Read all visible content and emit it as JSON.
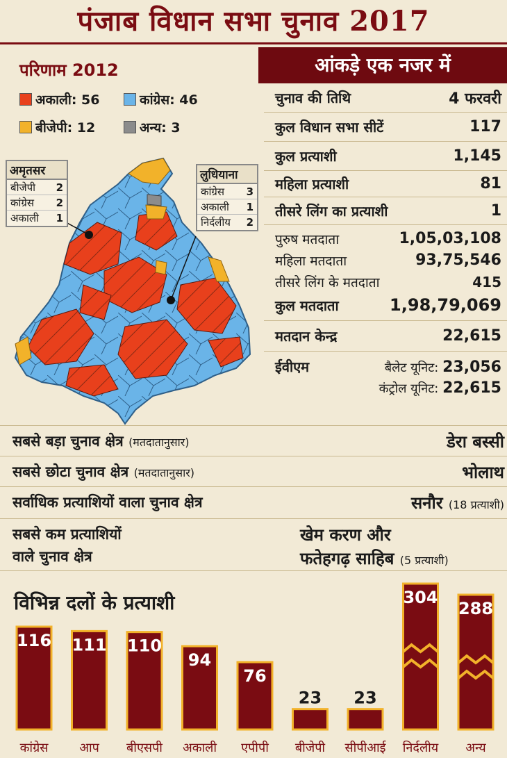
{
  "title": "पंजाब विधान सभा चुनाव 2017",
  "results_2012": {
    "title": "परिणाम 2012",
    "legend": [
      {
        "label": "अकाली: 56",
        "color": "#e8401c"
      },
      {
        "label": "कांग्रेस: 46",
        "color": "#6ab4e8"
      },
      {
        "label": "बीजेपी: 12",
        "color": "#f2b22a"
      },
      {
        "label": "अन्य: 3",
        "color": "#8c8c8c"
      }
    ],
    "amritsar": {
      "title": "अमृतसर",
      "rows": [
        {
          "party": "बीजेपी",
          "count": "2"
        },
        {
          "party": "कांग्रेस",
          "count": "2"
        },
        {
          "party": "अकाली",
          "count": "1"
        }
      ]
    },
    "ludhiana": {
      "title": "लुधियाना",
      "rows": [
        {
          "party": "कांग्रेस",
          "count": "3"
        },
        {
          "party": "अकाली",
          "count": "1"
        },
        {
          "party": "निर्दलीय",
          "count": "2"
        }
      ]
    }
  },
  "stats": {
    "header": "आंकड़े एक नजर में",
    "rows": [
      {
        "label": "चुनाव की तिथि",
        "value": "4 फरवरी"
      },
      {
        "label": "कुल विधान सभा सीटें",
        "value": "117"
      },
      {
        "label": "कुल प्रत्याशी",
        "value": "1,145"
      },
      {
        "label": "महिला प्रत्याशी",
        "value": "81"
      },
      {
        "label": "तीसरे लिंग का प्रत्याशी",
        "value": "1"
      },
      {
        "label": "पुरुष मतदाता",
        "value": "1,05,03,108"
      },
      {
        "label": "महिला मतदाता",
        "value": "93,75,546"
      },
      {
        "label": "तीसरे लिंग के मतदाता",
        "value": "415"
      },
      {
        "label": "कुल मतदाता",
        "value": "1,98,79,069"
      },
      {
        "label": "मतदान केन्द्र",
        "value": "22,615"
      }
    ],
    "evm": {
      "label": "ईवीएम",
      "ballot_label": "बैलेट यूनिट:",
      "ballot_value": "23,056",
      "control_label": "कंट्रोल यूनिट:",
      "control_value": "22,615"
    }
  },
  "facts": [
    {
      "label": "सबसे बड़ा चुनाव क्षेत्र",
      "note": "(मतदातानुसार)",
      "value": "डेरा बस्सी",
      "value_note": ""
    },
    {
      "label": "सबसे छोटा चुनाव क्षेत्र",
      "note": "(मतदातानुसार)",
      "value": "भोलाथ",
      "value_note": ""
    },
    {
      "label": "सर्वाधिक प्रत्याशियों वाला चुनाव क्षेत्र",
      "note": "",
      "value": "सनौर",
      "value_note": "(18 प्रत्याशी)"
    },
    {
      "label_line1": "सबसे कम प्रत्याशियों",
      "label_line2": "वाले चुनाव क्षेत्र",
      "value_line1": "खेम करण और",
      "value_line2": "फतेहगढ़ साहिब",
      "value_note": "(5 प्रत्याशी)"
    }
  ],
  "chart_data": {
    "type": "bar",
    "title": "विभिन्न दलों के प्रत्याशी",
    "categories": [
      "कांग्रेस",
      "आप",
      "बीएसपी",
      "अकाली",
      "एपीपी",
      "बीजेपी",
      "सीपीआई",
      "निर्दलीय",
      "अन्य"
    ],
    "values": [
      116,
      111,
      110,
      94,
      76,
      23,
      23,
      304,
      288
    ],
    "broken_axis_categories": [
      "निर्दलीय",
      "अन्य"
    ],
    "bar_color": "#7a0c12",
    "bar_border_color": "#f2b22a"
  }
}
